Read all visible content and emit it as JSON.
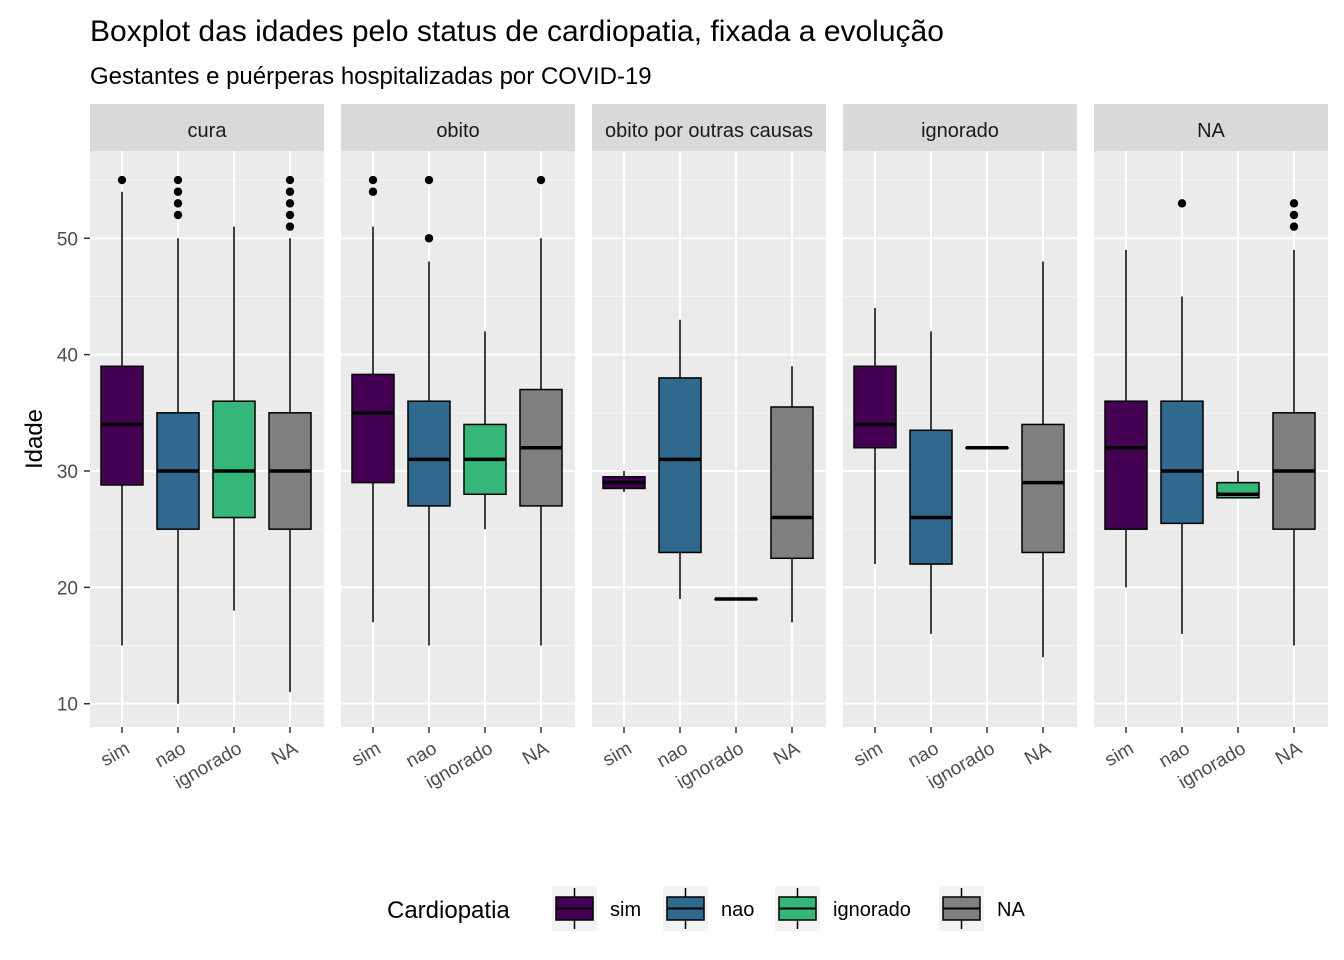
{
  "chart_data": {
    "type": "boxplot",
    "title": "Boxplot das idades pelo status de cardiopatia, fixada a evolução",
    "subtitle": "Gestantes e puérperas hospitalizadas por COVID-19",
    "xlabel": "",
    "ylabel": "Idade",
    "ylim": [
      8,
      57.5
    ],
    "yticks": [
      10,
      20,
      30,
      40,
      50
    ],
    "categories": [
      "sim",
      "nao",
      "ignorado",
      "NA"
    ],
    "colors": {
      "sim": "#440154",
      "nao": "#31688E",
      "ignorado": "#35B779",
      "NA": "#7F7F7F"
    },
    "legend": {
      "title": "Cardiopatia",
      "entries": [
        "sim",
        "nao",
        "ignorado",
        "NA"
      ],
      "position": "bottom"
    },
    "grid": true,
    "panels": [
      {
        "facet": "cura",
        "boxes": [
          {
            "category": "sim",
            "low": 15,
            "q1": 28.8,
            "median": 34,
            "q3": 39,
            "high": 54,
            "outliers": [
              55
            ]
          },
          {
            "category": "nao",
            "low": 10,
            "q1": 25,
            "median": 30,
            "q3": 35,
            "high": 50,
            "outliers": [
              52,
              53,
              54,
              55
            ]
          },
          {
            "category": "ignorado",
            "low": 18,
            "q1": 26,
            "median": 30,
            "q3": 36,
            "high": 51,
            "outliers": []
          },
          {
            "category": "NA",
            "low": 11,
            "q1": 25,
            "median": 30,
            "q3": 35,
            "high": 50,
            "outliers": [
              51,
              52,
              53,
              54,
              55
            ]
          }
        ]
      },
      {
        "facet": "obito",
        "boxes": [
          {
            "category": "sim",
            "low": 17,
            "q1": 29,
            "median": 35,
            "q3": 38.3,
            "high": 51,
            "outliers": [
              54,
              55
            ]
          },
          {
            "category": "nao",
            "low": 15,
            "q1": 27,
            "median": 31,
            "q3": 36,
            "high": 48,
            "outliers": [
              50,
              55
            ]
          },
          {
            "category": "ignorado",
            "low": 25,
            "q1": 28,
            "median": 31,
            "q3": 34,
            "high": 42,
            "outliers": []
          },
          {
            "category": "NA",
            "low": 15,
            "q1": 27,
            "median": 32,
            "q3": 37,
            "high": 50,
            "outliers": [
              55
            ]
          }
        ]
      },
      {
        "facet": "obito por outras causas",
        "boxes": [
          {
            "category": "sim",
            "low": 28.2,
            "q1": 28.5,
            "median": 29,
            "q3": 29.5,
            "high": 30,
            "outliers": []
          },
          {
            "category": "nao",
            "low": 19,
            "q1": 23,
            "median": 31,
            "q3": 38,
            "high": 43,
            "outliers": []
          },
          {
            "category": "ignorado",
            "low": 19,
            "q1": 19,
            "median": 19,
            "q3": 19,
            "high": 19,
            "outliers": []
          },
          {
            "category": "NA",
            "low": 17,
            "q1": 22.5,
            "median": 26,
            "q3": 35.5,
            "high": 39,
            "outliers": []
          }
        ]
      },
      {
        "facet": "ignorado",
        "boxes": [
          {
            "category": "sim",
            "low": 22,
            "q1": 32,
            "median": 34,
            "q3": 39,
            "high": 44,
            "outliers": []
          },
          {
            "category": "nao",
            "low": 16,
            "q1": 22,
            "median": 26,
            "q3": 33.5,
            "high": 42,
            "outliers": []
          },
          {
            "category": "ignorado",
            "low": 32,
            "q1": 32,
            "median": 32,
            "q3": 32,
            "high": 32,
            "outliers": []
          },
          {
            "category": "NA",
            "low": 14,
            "q1": 23,
            "median": 29,
            "q3": 34,
            "high": 48,
            "outliers": []
          }
        ]
      },
      {
        "facet": "NA",
        "boxes": [
          {
            "category": "sim",
            "low": 20,
            "q1": 25,
            "median": 32,
            "q3": 36,
            "high": 49,
            "outliers": []
          },
          {
            "category": "nao",
            "low": 16,
            "q1": 25.5,
            "median": 30,
            "q3": 36,
            "high": 45,
            "outliers": [
              53
            ]
          },
          {
            "category": "ignorado",
            "low": 27.7,
            "q1": 27.7,
            "median": 28,
            "q3": 29,
            "high": 30,
            "outliers": []
          },
          {
            "category": "NA",
            "low": 15,
            "q1": 25,
            "median": 30,
            "q3": 35,
            "high": 49,
            "outliers": [
              51,
              52,
              53
            ]
          }
        ]
      }
    ]
  }
}
